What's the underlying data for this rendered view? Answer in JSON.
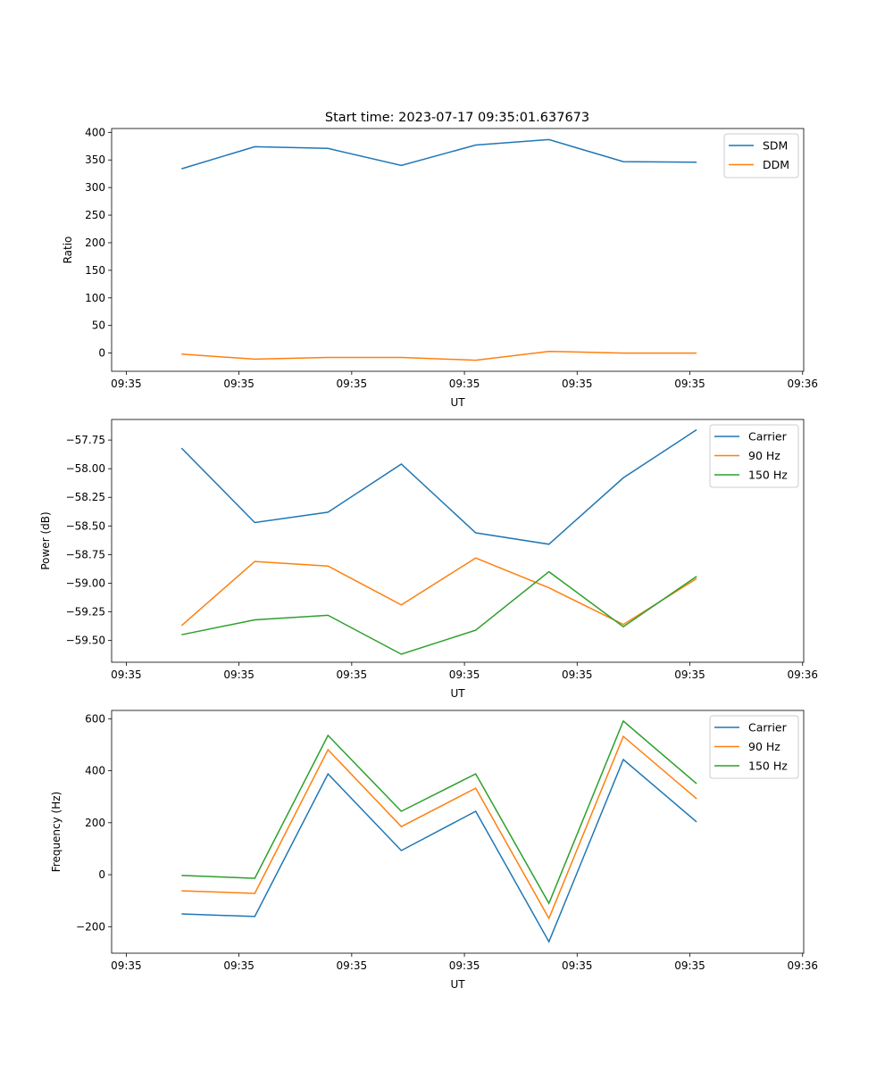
{
  "title": "Start time: 2023-07-17 09:35:01.637673",
  "colors": {
    "c0": "#1f77b4",
    "c1": "#ff7f0e",
    "c2": "#2ca02c"
  },
  "chart_data": [
    {
      "type": "line",
      "xlabel": "UT",
      "ylabel": "Ratio",
      "xticks": [
        "09:35",
        "09:35",
        "09:35",
        "09:35",
        "09:35",
        "09:35",
        "09:36"
      ],
      "xlim": [
        -0.13,
        6.01
      ],
      "x": [
        0.49,
        1.14,
        1.79,
        2.44,
        3.1,
        3.75,
        4.41,
        5.06
      ],
      "ylim": [
        -33,
        407
      ],
      "yticks": [
        0,
        50,
        100,
        150,
        200,
        250,
        300,
        350,
        400
      ],
      "legend": "top-right",
      "series": [
        {
          "name": "SDM",
          "color": "#1f77b4",
          "values": [
            334,
            374,
            371,
            340,
            377,
            387,
            347,
            346
          ]
        },
        {
          "name": "DDM",
          "color": "#ff7f0e",
          "values": [
            -2,
            -11,
            -8,
            -8,
            -13,
            3,
            0,
            0
          ]
        }
      ]
    },
    {
      "type": "line",
      "xlabel": "UT",
      "ylabel": "Power (dB)",
      "xticks": [
        "09:35",
        "09:35",
        "09:35",
        "09:35",
        "09:35",
        "09:35",
        "09:36"
      ],
      "xlim": [
        -0.13,
        6.01
      ],
      "x": [
        0.49,
        1.14,
        1.79,
        2.44,
        3.1,
        3.75,
        4.41,
        5.06
      ],
      "ylim": [
        -59.69,
        -57.57
      ],
      "yticks": [
        -59.5,
        -59.25,
        -59.0,
        -58.75,
        -58.5,
        -58.25,
        -58.0,
        -57.75
      ],
      "yticklabels": [
        "−59.50",
        "−59.25",
        "−59.00",
        "−58.75",
        "−58.50",
        "−58.25",
        "−58.00",
        "−57.75"
      ],
      "legend": "top-right",
      "series": [
        {
          "name": "Carrier",
          "color": "#1f77b4",
          "values": [
            -57.82,
            -58.47,
            -58.38,
            -57.96,
            -58.56,
            -58.66,
            -58.08,
            -57.66
          ]
        },
        {
          "name": "90 Hz",
          "color": "#ff7f0e",
          "values": [
            -59.37,
            -58.81,
            -58.85,
            -59.19,
            -58.78,
            -59.04,
            -59.36,
            -58.96
          ]
        },
        {
          "name": "150 Hz",
          "color": "#2ca02c",
          "values": [
            -59.45,
            -59.32,
            -59.28,
            -59.62,
            -59.41,
            -58.9,
            -59.38,
            -58.94
          ]
        }
      ]
    },
    {
      "type": "line",
      "xlabel": "UT",
      "ylabel": "Frequency (Hz)",
      "xticks": [
        "09:35",
        "09:35",
        "09:35",
        "09:35",
        "09:35",
        "09:35",
        "09:36"
      ],
      "xlim": [
        -0.13,
        6.01
      ],
      "x": [
        0.49,
        1.14,
        1.79,
        2.44,
        3.1,
        3.75,
        4.41,
        5.06
      ],
      "ylim": [
        -302,
        632
      ],
      "yticks": [
        -200,
        0,
        200,
        400,
        600
      ],
      "yticklabels": [
        "−200",
        "0",
        "200",
        "400",
        "600"
      ],
      "legend": "top-right",
      "series": [
        {
          "name": "Carrier",
          "color": "#1f77b4",
          "values": [
            -151,
            -161,
            388,
            93,
            244,
            -258,
            443,
            203
          ]
        },
        {
          "name": "90 Hz",
          "color": "#ff7f0e",
          "values": [
            -62,
            -72,
            481,
            185,
            333,
            -168,
            532,
            292
          ]
        },
        {
          "name": "150 Hz",
          "color": "#2ca02c",
          "values": [
            -3,
            -14,
            536,
            244,
            388,
            -110,
            591,
            350
          ]
        }
      ]
    }
  ]
}
